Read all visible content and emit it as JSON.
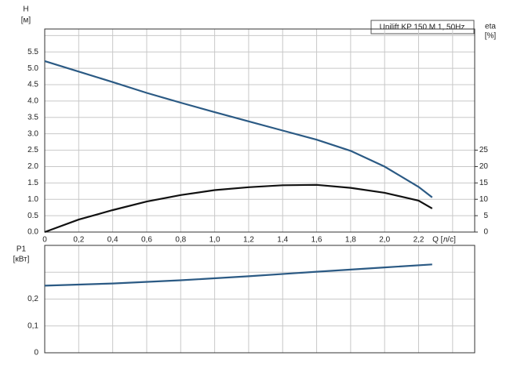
{
  "chart_data": [
    {
      "type": "line",
      "title": "Unilift KP 150 M 1, 50Hz",
      "ylabel": "H",
      "yunit": "[м]",
      "y2label": "eta",
      "y2unit": "[%]",
      "xlabel": "Q [л/с]",
      "x": [
        0,
        0.2,
        0.4,
        0.6,
        0.8,
        1.0,
        1.2,
        1.4,
        1.6,
        1.8,
        2.0,
        2.2,
        2.28
      ],
      "series": [
        {
          "color": "#2b5a84",
          "axis": "y",
          "values": [
            5.22,
            4.9,
            4.58,
            4.25,
            3.95,
            3.66,
            3.38,
            3.1,
            2.82,
            2.48,
            2.0,
            1.38,
            1.06
          ]
        },
        {
          "color": "#111111",
          "axis": "y2",
          "values": [
            0,
            3.8,
            6.7,
            9.3,
            11.3,
            12.8,
            13.7,
            14.3,
            14.4,
            13.5,
            12.0,
            9.6,
            7.2
          ]
        }
      ],
      "xlim": [
        0,
        2.53
      ],
      "xticks": [
        0,
        {
          "value": 0.2,
          "label": "0,2"
        },
        {
          "value": 0.4,
          "label": "0,4"
        },
        {
          "value": 0.6,
          "label": "0,6"
        },
        {
          "value": 0.8,
          "label": "0,8"
        },
        {
          "value": 1.0,
          "label": "1,0"
        },
        {
          "value": 1.2,
          "label": "1,2"
        },
        {
          "value": 1.4,
          "label": "1,4"
        },
        {
          "value": 1.6,
          "label": "1,6"
        },
        {
          "value": 1.8,
          "label": "1,8"
        },
        {
          "value": 2.0,
          "label": "2,0"
        },
        {
          "value": 2.2,
          "label": "2,2"
        },
        {
          "value": 2.4,
          "label": null
        }
      ],
      "ylim": [
        0,
        6.2
      ],
      "yticks": [
        {
          "value": 0,
          "label": "0.0"
        },
        0.5,
        {
          "value": 1,
          "label": "1.0"
        },
        1.5,
        {
          "value": 2,
          "label": "2.0"
        },
        2.5,
        {
          "value": 3,
          "label": "3.0"
        },
        3.5,
        {
          "value": 4,
          "label": "4.0"
        },
        4.5,
        {
          "value": 5,
          "label": "5.0"
        },
        5.5,
        {
          "value": 6,
          "label": null
        }
      ],
      "y2lim": [
        0,
        62
      ],
      "y2ticks": [
        0,
        5,
        10,
        15,
        20,
        25
      ],
      "grid": true,
      "xtick_labels": true
    },
    {
      "type": "line",
      "ylabel": "P1",
      "yunit": "[кВт]",
      "x": [
        0,
        0.4,
        0.8,
        1.2,
        1.6,
        2.0,
        2.28
      ],
      "series": [
        {
          "color": "#2b5a84",
          "axis": "y",
          "values": [
            0.25,
            0.258,
            0.27,
            0.285,
            0.302,
            0.318,
            0.329
          ]
        }
      ],
      "xlim": [
        0,
        2.53
      ],
      "xticks": [
        0,
        0.2,
        0.4,
        0.6,
        0.8,
        1.0,
        1.2,
        1.4,
        1.6,
        1.8,
        2.0,
        2.2,
        2.4
      ],
      "ylim": [
        0,
        0.4
      ],
      "yticks": [
        0,
        {
          "value": 0.1,
          "label": "0,1"
        },
        {
          "value": 0.2,
          "label": "0,2"
        },
        {
          "value": 0.3,
          "label": null
        }
      ],
      "grid": true,
      "xtick_labels": false
    }
  ]
}
